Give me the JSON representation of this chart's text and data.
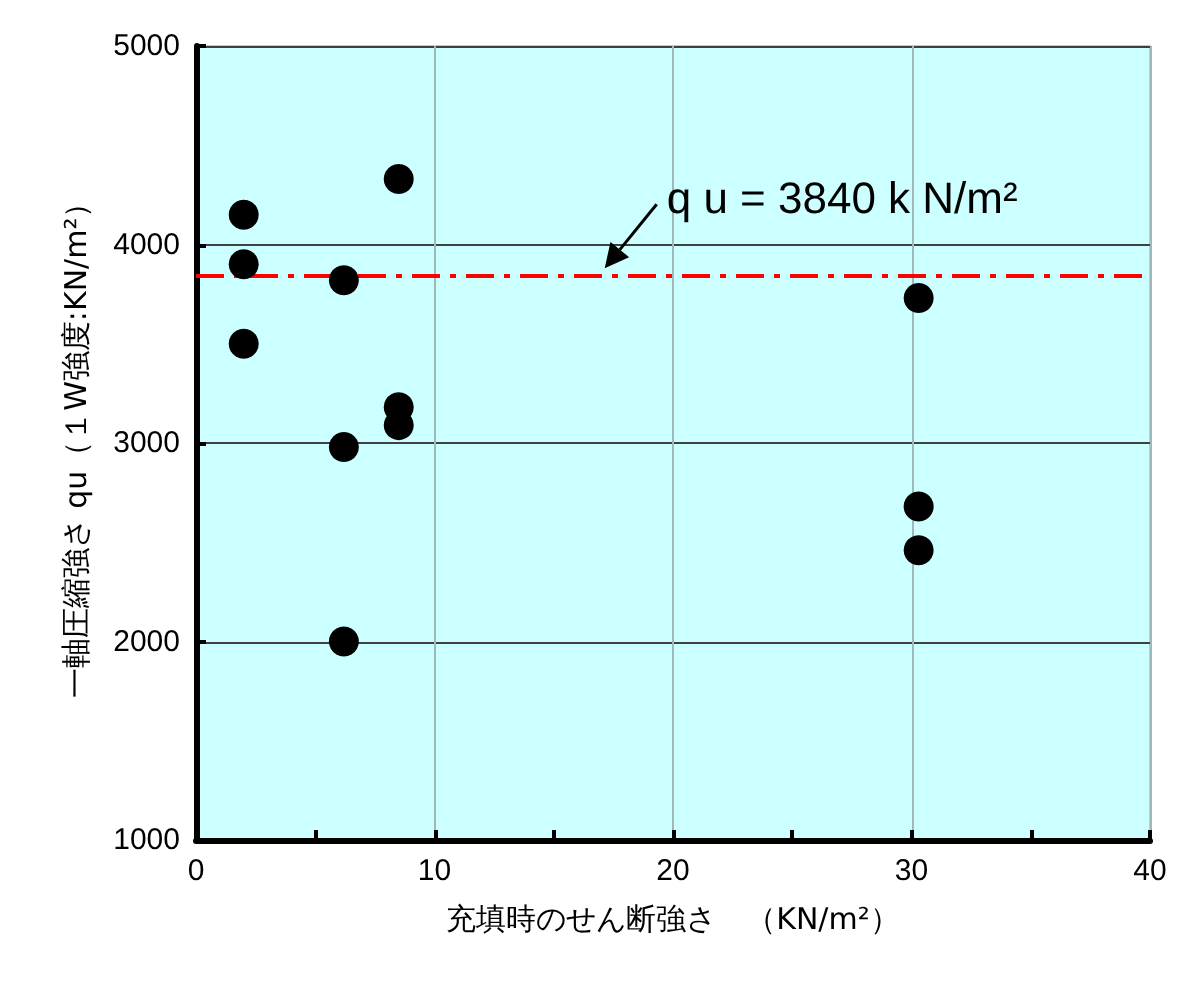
{
  "chart_data": {
    "type": "scatter",
    "xlabel": "充填時のせん断強さ　（KN/m²）",
    "ylabel": "一軸圧縮強さ qu（１W強度:KN/m²）",
    "x": [
      2,
      2,
      2,
      6.2,
      6.2,
      6.2,
      8.5,
      8.5,
      8.5,
      30.3,
      30.3,
      30.3
    ],
    "series": [
      {
        "color": "#000000",
        "values": [
          4150,
          3900,
          3500,
          3820,
          2980,
          2000,
          4330,
          3180,
          3090,
          3730,
          2680,
          2460
        ]
      }
    ],
    "xlim": [
      0,
      40
    ],
    "xticks": [
      0,
      {
        "value": 5,
        "label": null
      },
      10,
      {
        "value": 15,
        "label": null
      },
      20,
      {
        "value": 25,
        "label": null
      },
      30,
      {
        "value": 35,
        "label": null
      },
      40
    ],
    "ylim": [
      1000,
      5000
    ],
    "yticks": [
      1000,
      2000,
      3000,
      4000,
      5000
    ],
    "ref_lines": [
      {
        "axis": "y",
        "value": 3840,
        "label": "q u = 3840 k N/m²",
        "color": "#ff0000",
        "line_style": "dashdot"
      }
    ],
    "grid": true,
    "marker": "circle"
  }
}
